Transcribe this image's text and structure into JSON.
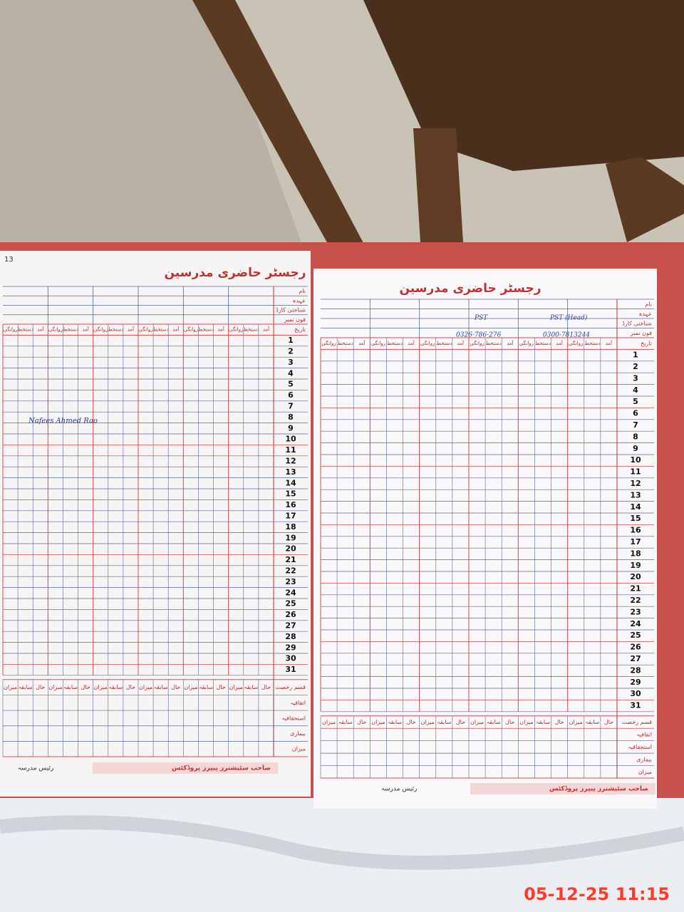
{
  "timestamp": "05-12-25 11:15",
  "left_page": {
    "page_no": "13",
    "title": "رجسٹر حاضری مدرسین",
    "header_labels": [
      "نام",
      "عہدہ",
      "شناختی کارڈ",
      "فون نمبر"
    ],
    "date_label": "تاریخ",
    "column_headers": [
      "آمد",
      "دستخط",
      "روانگی"
    ],
    "row_numbers": [
      1,
      2,
      3,
      4,
      5,
      6,
      7,
      8,
      9,
      10,
      11,
      12,
      13,
      14,
      15,
      16,
      17,
      18,
      19,
      20,
      21,
      22,
      23,
      24,
      25,
      26,
      27,
      28,
      29,
      30,
      31
    ],
    "leave_title": "قسم رخصت",
    "leave_labels": [
      "اتفاقیہ",
      "استحقاقیہ",
      "بیماری",
      "میزان"
    ],
    "summary_headers": [
      "حال",
      "سابقہ",
      "میزان"
    ],
    "footer": "رئیس مدرسہ",
    "printer": "صاحب سٹیشنرز پیپرز پروڈکٹس",
    "notes": [
      "Nafees Ahmed Rao"
    ]
  },
  "right_page": {
    "title": "رجسٹر حاضری مدرسین",
    "header_labels": [
      "نام",
      "عہدہ",
      "شناختی کارڈ",
      "فون نمبر"
    ],
    "date_label": "تاریخ",
    "column_headers": [
      "آمد",
      "دستخط",
      "روانگی"
    ],
    "row_numbers": [
      1,
      2,
      3,
      4,
      5,
      6,
      7,
      8,
      9,
      10,
      11,
      12,
      13,
      14,
      15,
      16,
      17,
      18,
      19,
      20,
      21,
      22,
      23,
      24,
      25,
      26,
      27,
      28,
      29,
      30,
      31
    ],
    "leave_title": "قسم رخصت",
    "leave_labels": [
      "اتفاقیہ",
      "استحقاقیہ",
      "بیماری",
      "میزان"
    ],
    "summary_headers": [
      "حال",
      "سابقہ",
      "میزان"
    ],
    "footer": "رئیس مدرسہ",
    "printer": "صاحب سٹیشنرز پیپرز پروڈکٹس",
    "notes": [
      "PST",
      "PST (Head)",
      "0326-786-276",
      "0300-7813244"
    ]
  }
}
